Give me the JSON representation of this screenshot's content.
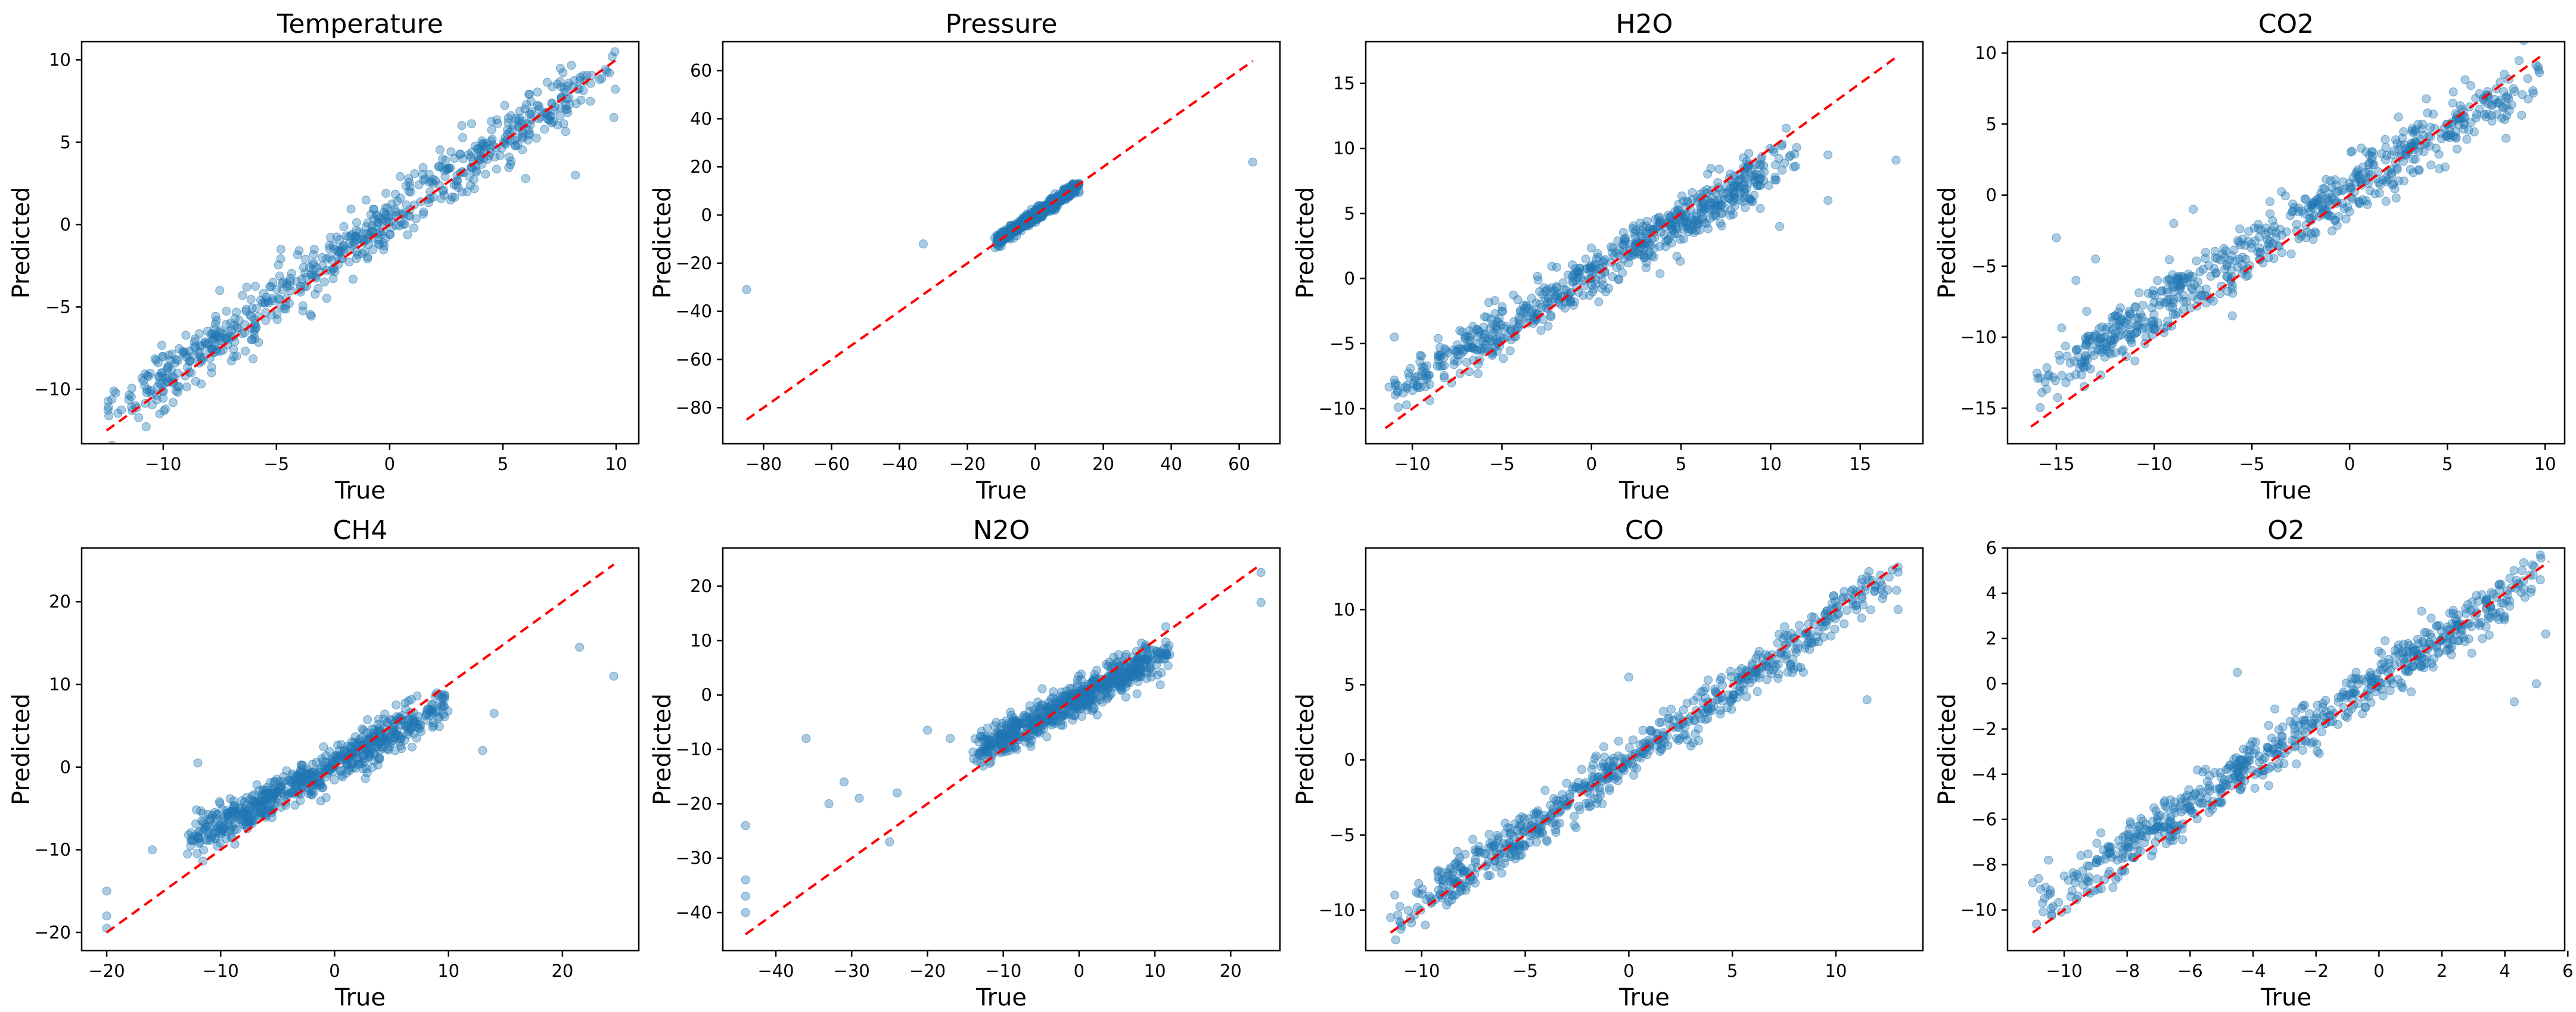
{
  "chart_data": [
    {
      "type": "scatter",
      "title": "Temperature",
      "xlabel": "True",
      "ylabel": "Predicted",
      "xlim": [
        -13.6,
        11.0
      ],
      "ylim": [
        -13.3,
        11.1
      ],
      "xticks": [
        -10,
        -5,
        0,
        5,
        10
      ],
      "yticks": [
        -10,
        -5,
        0,
        5,
        10
      ],
      "reference_line": [
        [
          -12.5,
          -12.5
        ],
        [
          10.0,
          10.0
        ]
      ],
      "cloud": {
        "x_range": [
          -12.5,
          10.0
        ],
        "slope": 0.97,
        "intercept": 0.3,
        "spread": 0.9
      },
      "outliers": [
        [
          -12.4,
          -11.6
        ],
        [
          -7.5,
          -4.0
        ],
        [
          -6.5,
          -4.3
        ],
        [
          -4.8,
          -1.5
        ],
        [
          6.0,
          2.8
        ],
        [
          8.2,
          3.0
        ],
        [
          9.9,
          6.5
        ],
        [
          9.7,
          9.2
        ]
      ]
    },
    {
      "type": "scatter",
      "title": "Pressure",
      "xlabel": "True",
      "ylabel": "Predicted",
      "xlim": [
        -92.0,
        72.0
      ],
      "ylim": [
        -95.0,
        72.0
      ],
      "xticks": [
        -80,
        -60,
        -40,
        -20,
        0,
        20,
        40,
        60
      ],
      "yticks": [
        -80,
        -60,
        -40,
        -20,
        0,
        20,
        40,
        60
      ],
      "reference_line": [
        [
          -85.0,
          -85.0
        ],
        [
          64.0,
          64.0
        ]
      ],
      "cloud": {
        "x_range": [
          -12.0,
          13.0
        ],
        "slope": 0.95,
        "intercept": 0.0,
        "spread": 1.2
      },
      "outliers": [
        [
          -85.0,
          -31.0
        ],
        [
          -33.0,
          -12.0
        ],
        [
          64.0,
          22.0
        ]
      ]
    },
    {
      "type": "scatter",
      "title": "H2O",
      "xlabel": "True",
      "ylabel": "Predicted",
      "xlim": [
        -12.6,
        18.5
      ],
      "ylim": [
        -12.7,
        18.2
      ],
      "xticks": [
        -10,
        -5,
        0,
        5,
        10,
        15
      ],
      "yticks": [
        -10,
        -5,
        0,
        5,
        10,
        15
      ],
      "reference_line": [
        [
          -11.5,
          -11.5
        ],
        [
          17.0,
          17.0
        ]
      ],
      "cloud": {
        "x_range": [
          -11.3,
          11.5
        ],
        "slope": 0.82,
        "intercept": 0.3,
        "spread": 0.9
      },
      "outliers": [
        [
          -11.0,
          -7.8
        ],
        [
          -11.0,
          -4.5
        ],
        [
          13.2,
          6.0
        ],
        [
          13.2,
          9.5
        ],
        [
          17.0,
          9.1
        ],
        [
          10.5,
          4.0
        ]
      ]
    },
    {
      "type": "scatter",
      "title": "CO2",
      "xlabel": "True",
      "ylabel": "Predicted",
      "xlim": [
        -17.5,
        11.0
      ],
      "ylim": [
        -17.5,
        10.8
      ],
      "xticks": [
        -15,
        -10,
        -5,
        0,
        5,
        10
      ],
      "yticks": [
        -15,
        -10,
        -5,
        0,
        5,
        10
      ],
      "reference_line": [
        [
          -16.3,
          -16.3
        ],
        [
          9.8,
          9.8
        ]
      ],
      "cloud": {
        "x_range": [
          -16.0,
          9.8
        ],
        "slope": 0.85,
        "intercept": 0.4,
        "spread": 1.0
      },
      "outliers": [
        [
          -15.0,
          -3.0
        ],
        [
          -14.0,
          -6.0
        ],
        [
          -13.0,
          -4.5
        ],
        [
          -9.0,
          -2.0
        ],
        [
          -8.0,
          -1.0
        ],
        [
          -6.0,
          -8.5
        ],
        [
          2.5,
          5.5
        ],
        [
          8.0,
          4.0
        ]
      ]
    },
    {
      "type": "scatter",
      "title": "CH4",
      "xlabel": "True",
      "ylabel": "Predicted",
      "xlim": [
        -22.2,
        26.7
      ],
      "ylim": [
        -22.2,
        26.5
      ],
      "xticks": [
        -20,
        -10,
        0,
        10,
        20
      ],
      "yticks": [
        -20,
        -10,
        0,
        10,
        20
      ],
      "reference_line": [
        [
          -20.0,
          -20.0
        ],
        [
          24.5,
          24.5
        ]
      ],
      "cloud": {
        "x_range": [
          -13.0,
          10.0
        ],
        "slope": 0.72,
        "intercept": 0.3,
        "spread": 1.2
      },
      "outliers": [
        [
          -20.0,
          -19.5
        ],
        [
          -20.0,
          -18.0
        ],
        [
          -20.0,
          -15.0
        ],
        [
          -16.0,
          -10.0
        ],
        [
          -12.0,
          0.5
        ],
        [
          13.0,
          2.0
        ],
        [
          14.0,
          6.5
        ],
        [
          21.5,
          14.5
        ],
        [
          24.5,
          11.0
        ]
      ]
    },
    {
      "type": "scatter",
      "title": "N2O",
      "xlabel": "True",
      "ylabel": "Predicted",
      "xlim": [
        -47.0,
        26.5
      ],
      "ylim": [
        -47.0,
        27.0
      ],
      "xticks": [
        -40,
        -30,
        -20,
        -10,
        0,
        10,
        20
      ],
      "yticks": [
        -40,
        -30,
        -20,
        -10,
        0,
        10,
        20
      ],
      "reference_line": [
        [
          -44.0,
          -44.0
        ],
        [
          24.0,
          24.0
        ]
      ],
      "cloud": {
        "x_range": [
          -14.0,
          12.0
        ],
        "slope": 0.72,
        "intercept": -0.6,
        "spread": 1.6
      },
      "outliers": [
        [
          -44.0,
          -40.0
        ],
        [
          -44.0,
          -37.0
        ],
        [
          -44.0,
          -34.0
        ],
        [
          -44.0,
          -24.0
        ],
        [
          -36.0,
          -8.0
        ],
        [
          -33.0,
          -20.0
        ],
        [
          -31.0,
          -16.0
        ],
        [
          -29.0,
          -19.0
        ],
        [
          -25.0,
          -27.0
        ],
        [
          -24.0,
          -18.0
        ],
        [
          -20.0,
          -6.5
        ],
        [
          -17.0,
          -8.0
        ],
        [
          24.0,
          17.0
        ],
        [
          24.0,
          22.5
        ]
      ]
    },
    {
      "type": "scatter",
      "title": "CO",
      "xlabel": "True",
      "ylabel": "Predicted",
      "xlim": [
        -12.7,
        14.2
      ],
      "ylim": [
        -12.7,
        14.1
      ],
      "xticks": [
        -10,
        -5,
        0,
        5,
        10
      ],
      "yticks": [
        -10,
        -5,
        0,
        5,
        10
      ],
      "reference_line": [
        [
          -11.5,
          -11.5
        ],
        [
          13.0,
          13.0
        ]
      ],
      "cloud": {
        "x_range": [
          -11.3,
          13.0
        ],
        "slope": 0.95,
        "intercept": 0.0,
        "spread": 0.8
      },
      "outliers": [
        [
          -11.5,
          -10.5
        ],
        [
          -11.3,
          -9.0
        ],
        [
          0.0,
          5.5
        ],
        [
          11.5,
          4.0
        ],
        [
          13.0,
          10.0
        ],
        [
          13.0,
          12.5
        ]
      ]
    },
    {
      "type": "scatter",
      "title": "O2",
      "xlabel": "True",
      "ylabel": "Predicted",
      "xlim": [
        -11.8,
        5.9
      ],
      "ylim": [
        -11.8,
        6.0
      ],
      "xticks": [
        -10,
        -8,
        -6,
        -4,
        -2,
        0,
        2,
        4,
        6
      ],
      "yticks": [
        -10,
        -8,
        -6,
        -4,
        -2,
        0,
        2,
        4,
        6
      ],
      "reference_line": [
        [
          -11.0,
          -11.0
        ],
        [
          5.4,
          5.4
        ]
      ],
      "cloud": {
        "x_range": [
          -11.0,
          5.4
        ],
        "slope": 0.93,
        "intercept": 0.2,
        "spread": 0.55
      },
      "outliers": [
        [
          -11.0,
          -8.8
        ],
        [
          -10.5,
          -7.8
        ],
        [
          -10.0,
          -8.5
        ],
        [
          -4.5,
          0.5
        ],
        [
          -3.5,
          -4.5
        ],
        [
          4.3,
          -0.8
        ],
        [
          5.0,
          0.0
        ],
        [
          5.3,
          2.2
        ],
        [
          4.8,
          4.8
        ]
      ]
    }
  ]
}
